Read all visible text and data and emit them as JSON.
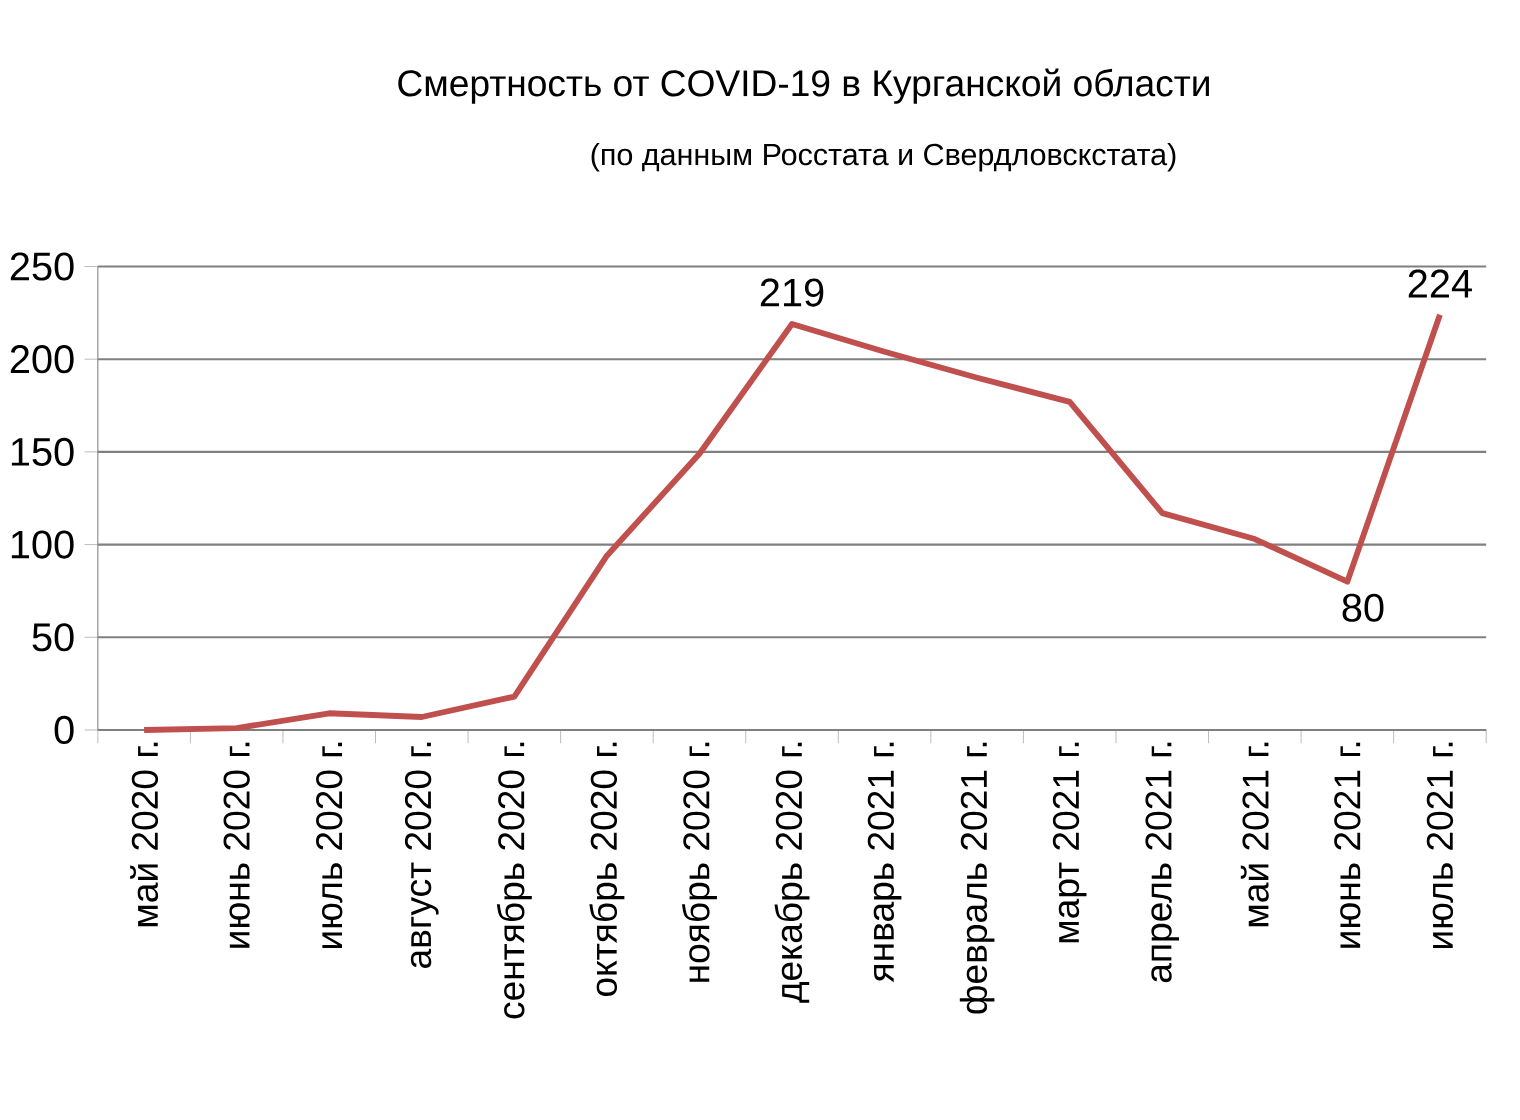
{
  "chart_data": {
    "type": "line",
    "title": "Смертность от COVID-19 в Курганской области",
    "subtitle": "(по данным Росстата и Свердловскстата)",
    "categories": [
      "май 2020 г.",
      "июнь 2020 г.",
      "июль 2020 г.",
      "август 2020 г.",
      "сентябрь 2020 г.",
      "октябрь 2020 г.",
      "ноябрь 2020 г.",
      "декабрь 2020 г.",
      "январь 2021 г.",
      "февраль 2021 г.",
      "март 2021 г.",
      "апрель 2021 г.",
      "май 2021 г.",
      "июнь 2021 г.",
      "июль 2021 г."
    ],
    "series": [
      {
        "color": "#c0504d",
        "values": [
          0,
          1,
          9,
          7,
          18,
          94,
          149,
          219,
          204,
          190,
          177,
          117,
          103,
          80,
          224
        ],
        "value_labels": [
          null,
          null,
          null,
          null,
          null,
          null,
          null,
          "219",
          null,
          null,
          null,
          null,
          null,
          "80",
          "224"
        ]
      }
    ],
    "ylim": [
      0,
      250
    ],
    "yticks": [
      0,
      50,
      100,
      150,
      200,
      250
    ],
    "grid": "y",
    "marker": "none",
    "line_style": "solid"
  }
}
